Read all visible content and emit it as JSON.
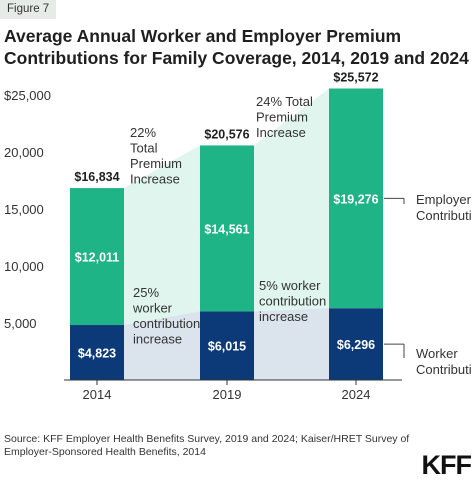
{
  "figure_label": "Figure 7",
  "title": "Average Annual Worker and Employer Premium Contributions for Family Coverage, 2014, 2019 and 2024",
  "source": "Source: KFF Employer Health Benefits Survey, 2019 and 2024; Kaiser/HRET Survey of Employer-Sponsored Health Benefits, 2014",
  "logo_text": "KFF",
  "colors": {
    "employer": "#1fb486",
    "worker": "#0c3a78",
    "employer_shade": "#dff5ee",
    "worker_shade": "#dbe3ec",
    "axis": "#333333"
  },
  "chart_data": {
    "type": "bar",
    "stacked": true,
    "categories": [
      "2014",
      "2019",
      "2024"
    ],
    "series": [
      {
        "name": "Worker Contribution",
        "label": "Worker Contributi",
        "values": [
          4823,
          6015,
          6296
        ],
        "value_labels": [
          "$4,823",
          "$6,015",
          "$6,296"
        ]
      },
      {
        "name": "Employer Contribution",
        "label": "Employer Contributi",
        "values": [
          12011,
          14561,
          19276
        ],
        "value_labels": [
          "$12,011",
          "$14,561",
          "$19,276"
        ]
      }
    ],
    "totals": [
      16834,
      20576,
      25572
    ],
    "total_labels": [
      "$16,834",
      "$20,576",
      "$25,572"
    ],
    "ylim": [
      0,
      25000
    ],
    "yticks": [
      0,
      5000,
      10000,
      15000,
      20000,
      25000
    ],
    "ytick_labels": [
      "",
      "5,000",
      "10,000",
      "15,000",
      "20,000",
      "$25,000"
    ],
    "grid": false,
    "annotations": [
      {
        "lines": [
          "22%",
          "Total",
          "Premium",
          "Increase"
        ],
        "segment": "employer",
        "between": [
          0,
          1
        ]
      },
      {
        "lines": [
          "24% Total",
          "Premium",
          "Increase"
        ],
        "segment": "employer",
        "between": [
          1,
          2
        ]
      },
      {
        "lines": [
          "25%",
          "worker",
          "contribution",
          "increase"
        ],
        "segment": "worker",
        "between": [
          0,
          1
        ]
      },
      {
        "lines": [
          "5% worker",
          "contribution",
          "increase"
        ],
        "segment": "worker",
        "between": [
          1,
          2
        ]
      }
    ]
  }
}
